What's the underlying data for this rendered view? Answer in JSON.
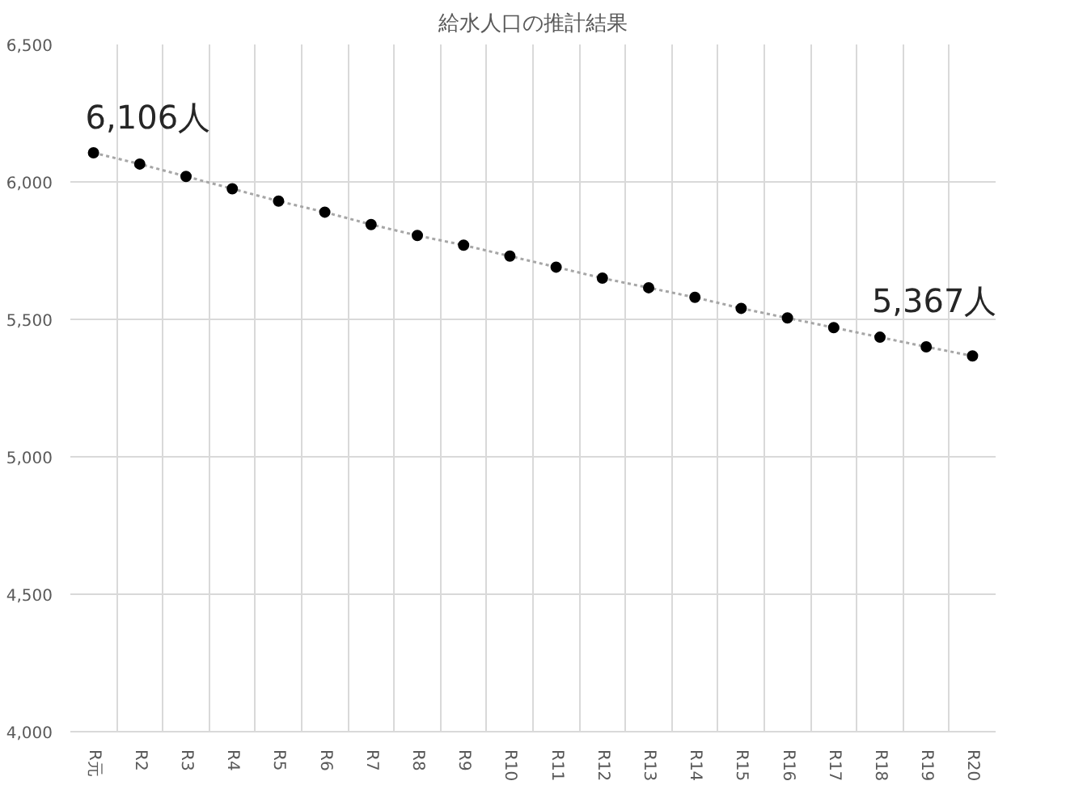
{
  "chart_data": {
    "type": "line",
    "title": "給水人口の推計結果",
    "categories": [
      "R元",
      "R2",
      "R3",
      "R4",
      "R5",
      "R6",
      "R7",
      "R8",
      "R9",
      "R10",
      "R11",
      "R12",
      "R13",
      "R14",
      "R15",
      "R16",
      "R17",
      "R18",
      "R19",
      "R20"
    ],
    "series": [
      {
        "color": "#000000",
        "values": [
          6106,
          6065,
          6020,
          5975,
          5930,
          5890,
          5845,
          5805,
          5770,
          5730,
          5690,
          5650,
          5615,
          5580,
          5540,
          5505,
          5470,
          5435,
          5400,
          5367
        ]
      }
    ],
    "ylim": [
      4000,
      6500
    ],
    "yticks": [
      {
        "value": 4000,
        "label": "4,000"
      },
      {
        "value": 4500,
        "label": "4,500"
      },
      {
        "value": 5000,
        "label": "5,000"
      },
      {
        "value": 5500,
        "label": "5,500"
      },
      {
        "value": 6000,
        "label": "6,000"
      },
      {
        "value": 6500,
        "label": "6,500"
      }
    ],
    "annotations": [
      {
        "text": "6,106人",
        "x": "R元",
        "y": 6106
      },
      {
        "text": "5,367人",
        "x": "R20",
        "y": 5367
      }
    ],
    "grid": true,
    "marker": "circle",
    "line_style": "dotted"
  }
}
